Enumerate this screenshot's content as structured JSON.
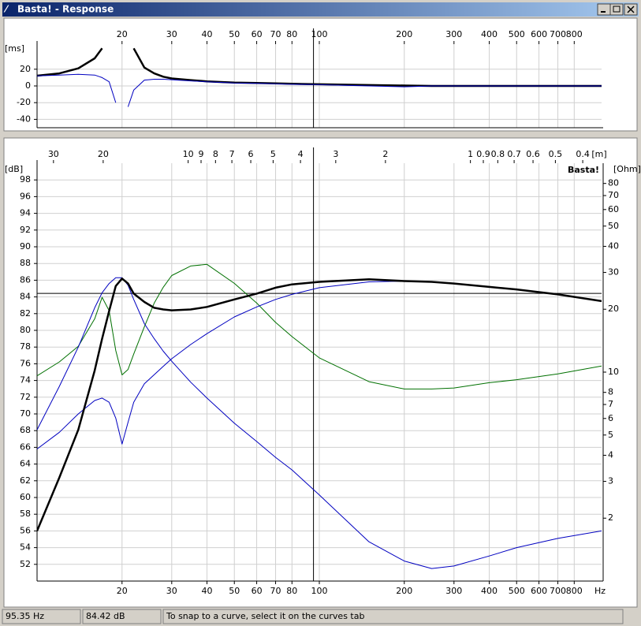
{
  "window": {
    "title": "Basta! - Response"
  },
  "cursor": {
    "frequency": {
      "value": 95.35,
      "label": "95.35 Hz"
    },
    "level": {
      "value": 84.42,
      "label": "84.42 dB"
    }
  },
  "status_bar": {
    "hint": "To snap to a curve, select it on the curves tab"
  },
  "chart_data": [
    {
      "type": "line",
      "ylabel": "[ms]",
      "xlog": true,
      "grid": true,
      "x": [
        10,
        12,
        14,
        16,
        17,
        18,
        19,
        20,
        21,
        22,
        24,
        26,
        28,
        30,
        35,
        40,
        50,
        60,
        70,
        80,
        100,
        150,
        200,
        250,
        300,
        400,
        500,
        700,
        1000
      ],
      "xlim": [
        10,
        1000
      ],
      "xticks": [
        20,
        30,
        40,
        50,
        60,
        70,
        80,
        100,
        200,
        300,
        400,
        500,
        600,
        700,
        800
      ],
      "ylim": [
        -50,
        50
      ],
      "yticks": [
        -40,
        -20,
        0,
        20
      ],
      "series": [
        {
          "color": "#000000",
          "line_width": 2.5,
          "values": [
            12.3,
            15,
            21,
            33,
            45,
            null,
            null,
            null,
            null,
            45,
            22,
            15,
            11,
            9,
            7,
            5.5,
            4,
            3.5,
            3,
            2.5,
            2,
            1,
            0.5,
            0,
            0,
            0,
            0,
            0,
            0
          ]
        },
        {
          "color": "#0000c0",
          "line_width": 1,
          "values": [
            12,
            13,
            14,
            13,
            10,
            5,
            -20,
            null,
            -25,
            -5,
            7,
            8,
            8,
            7.5,
            6,
            5,
            3.5,
            3,
            2.5,
            2,
            1.5,
            0,
            -1,
            0,
            0,
            0,
            0,
            0,
            0
          ]
        }
      ]
    },
    {
      "type": "line",
      "ylabel": "[dB]",
      "y2label": "[Ohm]",
      "xunit": "Hz",
      "x2label": "[m]",
      "watermark": "Basta!",
      "xlog": true,
      "y2log": true,
      "grid": true,
      "x": [
        10,
        12,
        14,
        16,
        17,
        18,
        19,
        20,
        21,
        22,
        24,
        26,
        28,
        30,
        35,
        40,
        50,
        60,
        70,
        80,
        100,
        150,
        200,
        250,
        300,
        400,
        500,
        700,
        1000
      ],
      "xlim": [
        10,
        1000
      ],
      "xticks": [
        20,
        30,
        40,
        50,
        60,
        70,
        80,
        100,
        200,
        300,
        400,
        500,
        600,
        700,
        800
      ],
      "x2ticks": [
        30,
        20,
        10,
        9,
        8,
        7,
        6,
        5,
        4,
        3,
        2,
        1,
        0.9,
        0.8,
        0.7,
        0.6,
        0.5,
        0.4
      ],
      "ylim": [
        50,
        100
      ],
      "yticks": [
        52,
        54,
        56,
        58,
        60,
        62,
        64,
        66,
        68,
        70,
        72,
        74,
        76,
        78,
        80,
        82,
        84,
        86,
        88,
        90,
        92,
        94,
        96,
        98
      ],
      "y2lim": [
        1,
        100
      ],
      "y2ticks": [
        2,
        3,
        4,
        5,
        6,
        7,
        8,
        10,
        20,
        30,
        40,
        50,
        60,
        70,
        80
      ],
      "series": [
        {
          "color": "#007000",
          "line_width": 1,
          "axis": "y2",
          "values": [
            9.6,
            11.2,
            13.3,
            18,
            22.8,
            19.7,
            12.7,
            9.7,
            10.3,
            12.2,
            16.5,
            21.4,
            25.5,
            29,
            32.2,
            32.8,
            26.6,
            21.4,
            17.3,
            14.8,
            11.7,
            9,
            8.3,
            8.3,
            8.4,
            8.9,
            9.2,
            9.8,
            10.7
          ]
        },
        {
          "color": "#0000c0",
          "line_width": 1,
          "values": [
            68.1,
            73.3,
            78,
            82.7,
            84.5,
            85.6,
            86.3,
            86.3,
            85.4,
            83.7,
            80.8,
            79,
            77.5,
            76.3,
            73.8,
            71.9,
            68.9,
            66.7,
            64.8,
            63.3,
            60.3,
            54.7,
            52.4,
            51.5,
            51.8,
            53,
            54,
            55.1,
            56
          ]
        },
        {
          "color": "#0000c0",
          "line_width": 1,
          "values": [
            65.8,
            67.8,
            70,
            71.6,
            71.9,
            71.4,
            69.5,
            66.4,
            69,
            71.4,
            73.6,
            74.7,
            75.7,
            76.6,
            78.3,
            79.6,
            81.6,
            82.8,
            83.7,
            84.3,
            85.1,
            85.8,
            85.9,
            85.8,
            85.6,
            85.2,
            84.9,
            84.3,
            83.5
          ]
        },
        {
          "color": "#000000",
          "line_width": 2.5,
          "values": [
            56,
            62.4,
            68.1,
            75.2,
            79,
            82.3,
            85.3,
            86.2,
            85.6,
            84.4,
            83.4,
            82.7,
            82.5,
            82.4,
            82.5,
            82.8,
            83.7,
            84.4,
            85.1,
            85.5,
            85.8,
            86.1,
            85.9,
            85.8,
            85.6,
            85.2,
            84.9,
            84.3,
            83.5
          ]
        }
      ]
    }
  ]
}
